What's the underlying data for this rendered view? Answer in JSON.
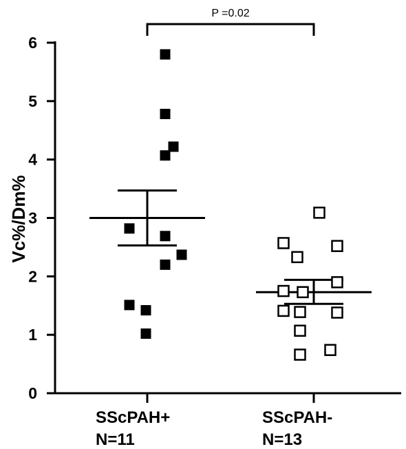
{
  "chart_data": {
    "type": "scatter",
    "title": "",
    "xlabel": "",
    "ylabel": "Vc%/Dm%",
    "ylim": [
      0,
      6
    ],
    "yticks": [
      0,
      1,
      2,
      3,
      4,
      5,
      6
    ],
    "grid": false,
    "legend": "none",
    "categories": [
      {
        "name": "SScPAH+",
        "n_label": "N=11"
      },
      {
        "name": "SScPAH-",
        "n_label": "N=13"
      }
    ],
    "series": [
      {
        "name": "SScPAH+",
        "marker": "filled-square",
        "color": "#000000",
        "values": [
          5.8,
          4.78,
          4.22,
          4.07,
          2.82,
          2.69,
          2.37,
          2.2,
          1.51,
          1.42,
          1.02
        ],
        "mean": 3.0,
        "sem_upper": 3.47,
        "sem_lower": 2.53
      },
      {
        "name": "SScPAH-",
        "marker": "open-square",
        "color": "#000000",
        "values": [
          3.09,
          2.57,
          2.52,
          2.33,
          1.9,
          1.75,
          1.73,
          1.41,
          1.39,
          1.38,
          1.07,
          0.74,
          0.66
        ],
        "mean": 1.73,
        "sem_upper": 1.94,
        "sem_lower": 1.53
      }
    ],
    "annotations": [
      {
        "text": "P =0.02",
        "type": "significance-bracket",
        "between": [
          "SScPAH+",
          "SScPAH-"
        ]
      }
    ]
  }
}
